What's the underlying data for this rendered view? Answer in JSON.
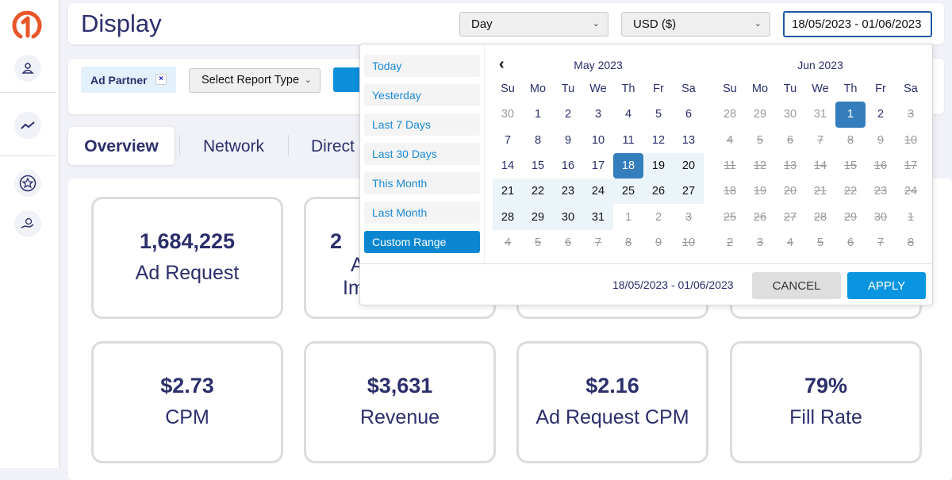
{
  "header": {
    "title": "Display",
    "granularity": "Day",
    "currency": "USD ($)",
    "date_range": "18/05/2023 - 01/06/2023"
  },
  "filters": {
    "chip_label": "Ad Partner",
    "chip_remove": "×",
    "report_type": "Select Report Type"
  },
  "tabs": [
    "Overview",
    "Network",
    "Direct"
  ],
  "stats_row1": [
    {
      "value": "1,684,225",
      "label": "Ad Request"
    },
    {
      "value": "2",
      "label": "A",
      "label2": "Im"
    }
  ],
  "stats_row2": [
    {
      "value": "$2.73",
      "label": "CPM"
    },
    {
      "value": "$3,631",
      "label": "Revenue"
    },
    {
      "value": "$2.16",
      "label": "Ad Request CPM"
    },
    {
      "value": "79%",
      "label": "Fill Rate"
    }
  ],
  "datepicker": {
    "ranges": [
      "Today",
      "Yesterday",
      "Last 7 Days",
      "Last 30 Days",
      "This Month",
      "Last Month",
      "Custom Range"
    ],
    "active_range": "Custom Range",
    "weekdays": [
      "Su",
      "Mo",
      "Tu",
      "We",
      "Th",
      "Fr",
      "Sa"
    ],
    "prev": "‹",
    "months": [
      {
        "title": "May 2023",
        "weeks": [
          [
            [
              "30",
              "off"
            ],
            [
              "1",
              ""
            ],
            [
              "2",
              ""
            ],
            [
              "3",
              ""
            ],
            [
              "4",
              ""
            ],
            [
              "5",
              ""
            ],
            [
              "6",
              ""
            ]
          ],
          [
            [
              "7",
              ""
            ],
            [
              "8",
              ""
            ],
            [
              "9",
              ""
            ],
            [
              "10",
              ""
            ],
            [
              "11",
              ""
            ],
            [
              "12",
              ""
            ],
            [
              "13",
              ""
            ]
          ],
          [
            [
              "14",
              ""
            ],
            [
              "15",
              ""
            ],
            [
              "16",
              ""
            ],
            [
              "17",
              ""
            ],
            [
              "18",
              "se"
            ],
            [
              "19",
              "in"
            ],
            [
              "20",
              "in"
            ]
          ],
          [
            [
              "21",
              "in"
            ],
            [
              "22",
              "in"
            ],
            [
              "23",
              "in"
            ],
            [
              "24",
              "in"
            ],
            [
              "25",
              "in"
            ],
            [
              "26",
              "in"
            ],
            [
              "27",
              "in"
            ]
          ],
          [
            [
              "28",
              "in"
            ],
            [
              "29",
              "in"
            ],
            [
              "30",
              "in"
            ],
            [
              "31",
              "in"
            ],
            [
              "1",
              "off"
            ],
            [
              "2",
              "off"
            ],
            [
              "3",
              "dis"
            ]
          ],
          [
            [
              "4",
              "dis"
            ],
            [
              "5",
              "dis"
            ],
            [
              "6",
              "dis"
            ],
            [
              "7",
              "dis"
            ],
            [
              "8",
              "dis"
            ],
            [
              "9",
              "dis"
            ],
            [
              "10",
              "dis"
            ]
          ]
        ]
      },
      {
        "title": "Jun 2023",
        "weeks": [
          [
            [
              "28",
              "off"
            ],
            [
              "29",
              "off"
            ],
            [
              "30",
              "off"
            ],
            [
              "31",
              "off"
            ],
            [
              "1",
              "se"
            ],
            [
              "2",
              ""
            ],
            [
              "3",
              "dis"
            ]
          ],
          [
            [
              "4",
              "dis"
            ],
            [
              "5",
              "dis"
            ],
            [
              "6",
              "dis"
            ],
            [
              "7",
              "dis"
            ],
            [
              "8",
              "dis"
            ],
            [
              "9",
              "dis"
            ],
            [
              "10",
              "dis"
            ]
          ],
          [
            [
              "11",
              "dis"
            ],
            [
              "12",
              "dis"
            ],
            [
              "13",
              "dis"
            ],
            [
              "14",
              "dis"
            ],
            [
              "15",
              "dis"
            ],
            [
              "16",
              "dis"
            ],
            [
              "17",
              "dis"
            ]
          ],
          [
            [
              "18",
              "dis"
            ],
            [
              "19",
              "dis"
            ],
            [
              "20",
              "dis"
            ],
            [
              "21",
              "dis"
            ],
            [
              "22",
              "dis"
            ],
            [
              "23",
              "dis"
            ],
            [
              "24",
              "dis"
            ]
          ],
          [
            [
              "25",
              "dis"
            ],
            [
              "26",
              "dis"
            ],
            [
              "27",
              "dis"
            ],
            [
              "28",
              "dis"
            ],
            [
              "29",
              "dis"
            ],
            [
              "30",
              "dis"
            ],
            [
              "1",
              "dis"
            ]
          ],
          [
            [
              "2",
              "dis"
            ],
            [
              "3",
              "dis"
            ],
            [
              "4",
              "dis"
            ],
            [
              "5",
              "dis"
            ],
            [
              "6",
              "dis"
            ],
            [
              "7",
              "dis"
            ],
            [
              "8",
              "dis"
            ]
          ]
        ]
      }
    ],
    "selected_range": "18/05/2023 - 01/06/2023",
    "cancel": "CANCEL",
    "apply": "APPLY"
  },
  "colors": {
    "brand": "#e8562a",
    "primary": "#0b95e1",
    "text": "#2b2f6b"
  }
}
